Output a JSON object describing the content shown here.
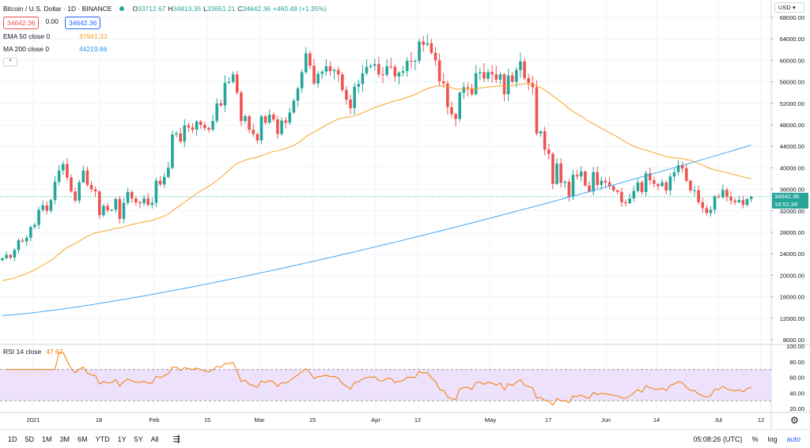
{
  "header": {
    "symbol_title": "Bitcoin / U.S. Dollar · 1D · BINANCE",
    "ohlc": [
      {
        "label": "O",
        "value": "33712.67"
      },
      {
        "label": "H",
        "value": "34813.35"
      },
      {
        "label": "L",
        "value": "33651.21"
      },
      {
        "label": "C",
        "value": "34642.36"
      }
    ],
    "change": "+460.48 (+1.35%)",
    "bid": "34642.36",
    "spread": "0.00",
    "ask": "34642.36",
    "ema_label": "EMA 50 close 0",
    "ema_value": "37941.33",
    "ma_label": "MA 200 close 0",
    "ma_value": "44219.66",
    "collapse_glyph": "^"
  },
  "rsi": {
    "label": "RSI 14 close",
    "value": "47.67"
  },
  "price_axis": {
    "currency": "USD",
    "ticks": [
      "68000.00",
      "64000.00",
      "60000.00",
      "56000.00",
      "52000.00",
      "48000.00",
      "44000.00",
      "40000.00",
      "36000.00",
      "32000.00",
      "28000.00",
      "24000.00",
      "20000.00",
      "16000.00",
      "12000.00",
      "8000.00"
    ],
    "last_price": "34642.36",
    "countdown": "18:51:34"
  },
  "rsi_axis": {
    "ticks": [
      "100.00",
      "80.00",
      "60.00",
      "40.00",
      "20.00"
    ]
  },
  "time_axis": {
    "labels": [
      "2021",
      "18",
      "Feb",
      "15",
      "Mar",
      "15",
      "Apr",
      "12",
      "May",
      "17",
      "Jun",
      "14",
      "Jul",
      "12"
    ]
  },
  "toolbar": {
    "timeframes": [
      "1D",
      "5D",
      "1M",
      "3M",
      "6M",
      "YTD",
      "1Y",
      "5Y",
      "All"
    ],
    "range_icon": "date-range-icon",
    "time": "05:08:26 (UTC)",
    "percent": "%",
    "log": "log",
    "auto": "auto"
  },
  "colors": {
    "up": "#26a69a",
    "down": "#ef5350",
    "ema": "#f5a623",
    "ma": "#42a5f5",
    "rsi": "#f57c00",
    "rsi_band": "#ede1fb"
  },
  "chart_data": [
    {
      "type": "candlestick",
      "title": "Bitcoin / U.S. Dollar · 1D · BINANCE",
      "ylim": [
        8000,
        68000
      ],
      "grid": true,
      "x_start": "2020-12-21",
      "x_end": "2021-07-05",
      "close": [
        23200,
        23800,
        23300,
        24700,
        26500,
        26300,
        27000,
        29000,
        29400,
        32200,
        33000,
        32000,
        34000,
        37400,
        39500,
        40700,
        38200,
        35600,
        33900,
        37300,
        39500,
        36800,
        36000,
        35600,
        31200,
        32900,
        32100,
        32200,
        34200,
        30500,
        33500,
        35500,
        34300,
        33600,
        33400,
        34300,
        33100,
        33500,
        37600,
        36900,
        38300,
        40000,
        46200,
        46400,
        44900,
        47900,
        47500,
        47100,
        48600,
        48000,
        47400,
        47100,
        48700,
        52000,
        51600,
        55800,
        56000,
        57400,
        54000,
        48700,
        49600,
        47100,
        46300,
        45100,
        49600,
        48400,
        49900,
        49000,
        46300,
        48800,
        48400,
        50300,
        52500,
        54800,
        57800,
        61300,
        59000,
        55700,
        57500,
        57900,
        58900,
        58000,
        58200,
        57400,
        54500,
        52700,
        51100,
        55100,
        55600,
        57600,
        58800,
        59000,
        59300,
        57400,
        57300,
        58900,
        58800,
        57000,
        57700,
        58000,
        59900,
        59800,
        59900,
        63500,
        62900,
        63200,
        61400,
        60000,
        56100,
        55700,
        51300,
        50000,
        49100,
        54000,
        55000,
        54800,
        53700,
        57600,
        57800,
        56600,
        57800,
        57400,
        56400,
        57400,
        53700,
        57200,
        56000,
        58200,
        59800,
        56700,
        55800,
        55000,
        46400,
        46800,
        43400,
        42600,
        37000,
        40800,
        37200,
        37400,
        34700,
        38700,
        38400,
        39300,
        36700,
        35600,
        39200,
        36800,
        37600,
        37300,
        36600,
        35800,
        35500,
        33600,
        33400,
        34300,
        35700,
        37300,
        35500,
        39000,
        37700,
        37000,
        36600,
        37300,
        35800,
        38400,
        39200,
        40500,
        39900,
        37600,
        35800,
        35800,
        33600,
        32500,
        31600,
        32200,
        34700,
        34500,
        35900,
        34600,
        33900,
        33600,
        34000,
        33100,
        34200,
        34600
      ],
      "ema50_end": 37941.33,
      "ma200_end": 44219.66
    },
    {
      "type": "line",
      "title": "RSI 14 close",
      "ylim": [
        20,
        100
      ],
      "band": [
        30,
        70
      ],
      "x_start": "2020-12-21",
      "x_end": "2021-07-05",
      "last_value": 47.67
    }
  ]
}
